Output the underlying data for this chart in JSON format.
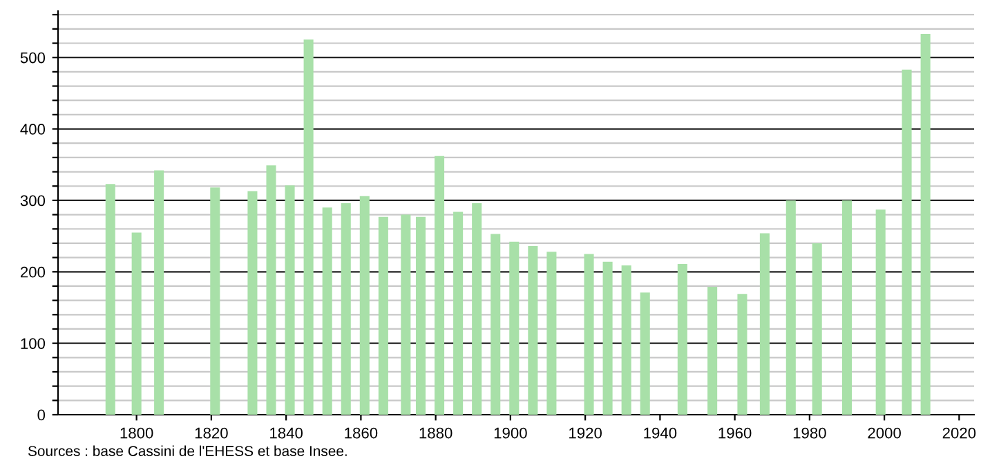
{
  "chart_data": {
    "type": "bar",
    "x": [
      1793,
      1800,
      1806,
      1821,
      1831,
      1836,
      1841,
      1846,
      1851,
      1856,
      1861,
      1866,
      1872,
      1876,
      1881,
      1886,
      1891,
      1896,
      1901,
      1906,
      1911,
      1921,
      1926,
      1931,
      1936,
      1946,
      1954,
      1962,
      1968,
      1975,
      1982,
      1990,
      1999,
      2006,
      2011
    ],
    "values": [
      323,
      255,
      342,
      318,
      313,
      349,
      321,
      525,
      290,
      296,
      306,
      277,
      280,
      277,
      362,
      284,
      296,
      253,
      242,
      236,
      228,
      225,
      214,
      209,
      171,
      211,
      179,
      169,
      254,
      300,
      240,
      300,
      287,
      483,
      533
    ],
    "color": "#a8e0a8",
    "xlim": [
      1779,
      2024
    ],
    "xticks": [
      1800,
      1820,
      1840,
      1860,
      1880,
      1900,
      1920,
      1940,
      1960,
      1980,
      2000,
      2020
    ],
    "ylim": [
      0,
      565
    ],
    "yticks": [
      0,
      {
        "value": 20,
        "label": null
      },
      {
        "value": 40,
        "label": null
      },
      {
        "value": 60,
        "label": null
      },
      {
        "value": 80,
        "label": null
      },
      100,
      {
        "value": 120,
        "label": null
      },
      {
        "value": 140,
        "label": null
      },
      {
        "value": 160,
        "label": null
      },
      {
        "value": 180,
        "label": null
      },
      200,
      {
        "value": 220,
        "label": null
      },
      {
        "value": 240,
        "label": null
      },
      {
        "value": 260,
        "label": null
      },
      {
        "value": 280,
        "label": null
      },
      300,
      {
        "value": 320,
        "label": null
      },
      {
        "value": 340,
        "label": null
      },
      {
        "value": 360,
        "label": null
      },
      {
        "value": 380,
        "label": null
      },
      400,
      {
        "value": 420,
        "label": null
      },
      {
        "value": 440,
        "label": null
      },
      {
        "value": 460,
        "label": null
      },
      {
        "value": 480,
        "label": null
      },
      500,
      {
        "value": 520,
        "label": null
      },
      {
        "value": 540,
        "label": null
      },
      {
        "value": 560,
        "label": null
      }
    ],
    "grid": "y",
    "annotations": [
      "Sources : base Cassini de l'EHESS et base Insee."
    ]
  }
}
